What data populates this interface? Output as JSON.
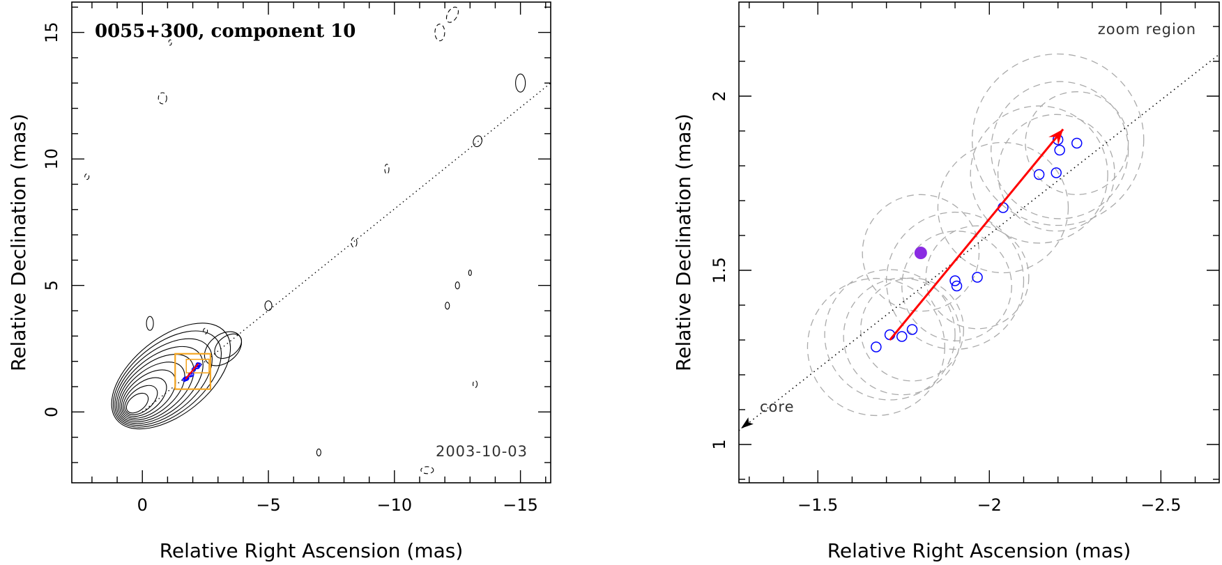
{
  "chart_data": [
    {
      "type": "contour",
      "title": "0055+300, component 10",
      "epoch": "2003-10-03",
      "xlabel": "Relative Right Ascension (mas)",
      "ylabel": "Relative Declination (mas)",
      "xlim": [
        2.8,
        -16.2
      ],
      "ylim": [
        -2.8,
        16.2
      ],
      "xticks": [
        0,
        -5,
        -10,
        -15
      ],
      "yticks": [
        0,
        5,
        10,
        15
      ],
      "xtick_labels": [
        "0",
        "−5",
        "−10",
        "−15"
      ],
      "ytick_labels": [
        "0",
        "5",
        "10",
        "15"
      ],
      "jet_axis": {
        "from": [
          0,
          0
        ],
        "to": [
          -16.2,
          13
        ]
      },
      "zoom_box": {
        "x": [
          -1.3,
          -2.7
        ],
        "y": [
          0.9,
          2.3
        ]
      },
      "colors": {
        "box": "#f5a623",
        "arrow": "#ff0000",
        "circles": "#0000ff",
        "contours": "#000000"
      }
    },
    {
      "type": "scatter",
      "region_label": "zoom region",
      "core_label": "core",
      "xlabel": "Relative Right Ascension (mas)",
      "ylabel": "Relative Declination (mas)",
      "xlim": [
        -1.27,
        -2.67
      ],
      "ylim": [
        0.89,
        2.27
      ],
      "xticks": [
        -1.5,
        -2,
        -2.5
      ],
      "yticks": [
        1,
        1.5,
        2
      ],
      "xtick_labels": [
        "−1.5",
        "−2",
        "−2.5"
      ],
      "ytick_labels": [
        "1",
        "1.5",
        "2"
      ],
      "points": [
        {
          "x": -1.67,
          "y": 1.28
        },
        {
          "x": -1.71,
          "y": 1.315
        },
        {
          "x": -1.745,
          "y": 1.31
        },
        {
          "x": -1.775,
          "y": 1.33
        },
        {
          "x": -1.9,
          "y": 1.47
        },
        {
          "x": -1.905,
          "y": 1.455
        },
        {
          "x": -1.965,
          "y": 1.48
        },
        {
          "x": -2.04,
          "y": 1.68
        },
        {
          "x": -2.145,
          "y": 1.775
        },
        {
          "x": -2.195,
          "y": 1.78
        },
        {
          "x": -2.2,
          "y": 1.875
        },
        {
          "x": -2.205,
          "y": 1.845
        },
        {
          "x": -2.255,
          "y": 1.865
        }
      ],
      "filled_point": {
        "x": -1.8,
        "y": 1.55
      },
      "arrow": {
        "from": [
          -1.71,
          1.3
        ],
        "to": [
          -2.215,
          1.905
        ]
      },
      "jet_axis": {
        "from": [
          -1.27,
          1.04
        ],
        "to": [
          -2.67,
          2.12
        ]
      },
      "error_circles": [
        {
          "x": -1.67,
          "y": 1.28,
          "r": 0.2
        },
        {
          "x": -1.71,
          "y": 1.315,
          "r": 0.19
        },
        {
          "x": -1.745,
          "y": 1.31,
          "r": 0.17
        },
        {
          "x": -1.775,
          "y": 1.33,
          "r": 0.15
        },
        {
          "x": -1.8,
          "y": 1.55,
          "r": 0.17
        },
        {
          "x": -1.9,
          "y": 1.47,
          "r": 0.2
        },
        {
          "x": -1.905,
          "y": 1.455,
          "r": 0.16
        },
        {
          "x": -1.965,
          "y": 1.48,
          "r": 0.15
        },
        {
          "x": -2.04,
          "y": 1.68,
          "r": 0.19
        },
        {
          "x": -2.145,
          "y": 1.775,
          "r": 0.2
        },
        {
          "x": -2.195,
          "y": 1.78,
          "r": 0.17
        },
        {
          "x": -2.2,
          "y": 1.875,
          "r": 0.25
        },
        {
          "x": -2.205,
          "y": 1.845,
          "r": 0.2
        },
        {
          "x": -2.255,
          "y": 1.865,
          "r": 0.15
        }
      ],
      "colors": {
        "arrow": "#ff0000",
        "circles": "#0000ff",
        "filled": "#8a2be2",
        "error_circles": "#aaaaaa"
      }
    }
  ]
}
